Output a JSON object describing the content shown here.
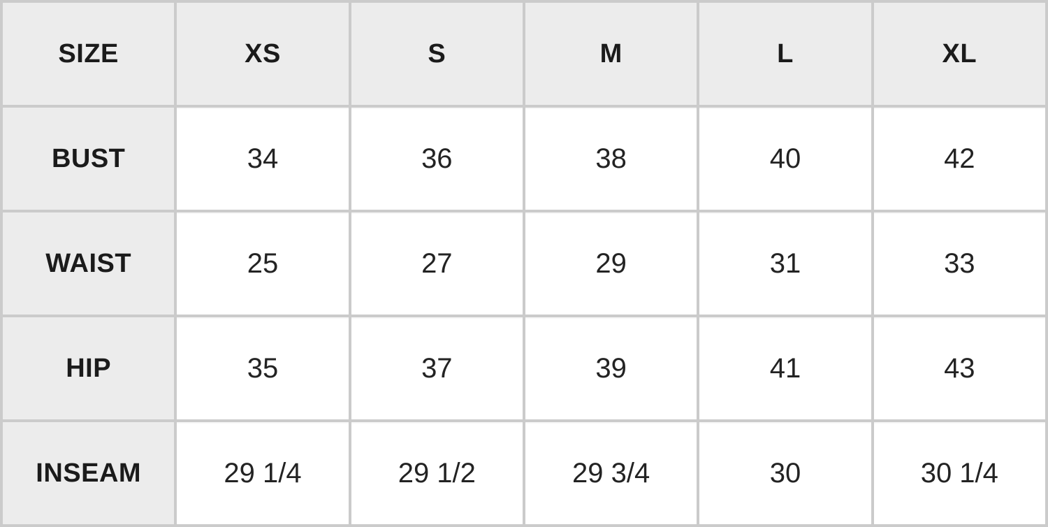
{
  "chart_data": {
    "type": "table",
    "columns": [
      "SIZE",
      "XS",
      "S",
      "M",
      "L",
      "XL"
    ],
    "rows": [
      [
        "BUST",
        "34",
        "36",
        "38",
        "40",
        "42"
      ],
      [
        "WAIST",
        "25",
        "27",
        "29",
        "31",
        "33"
      ],
      [
        "HIP",
        "35",
        "37",
        "39",
        "41",
        "43"
      ],
      [
        "INSEAM",
        "29 1/4",
        "29 1/2",
        "29 3/4",
        "30",
        "30 1/4"
      ]
    ],
    "layout_hints": {
      "header_row_shaded": true,
      "label_column_shaded": true,
      "grid": "full"
    }
  },
  "colors": {
    "header_bg": "#ececec",
    "cell_bg": "#ffffff",
    "border": "#cbcbcb",
    "text": "#1b1b1b"
  }
}
